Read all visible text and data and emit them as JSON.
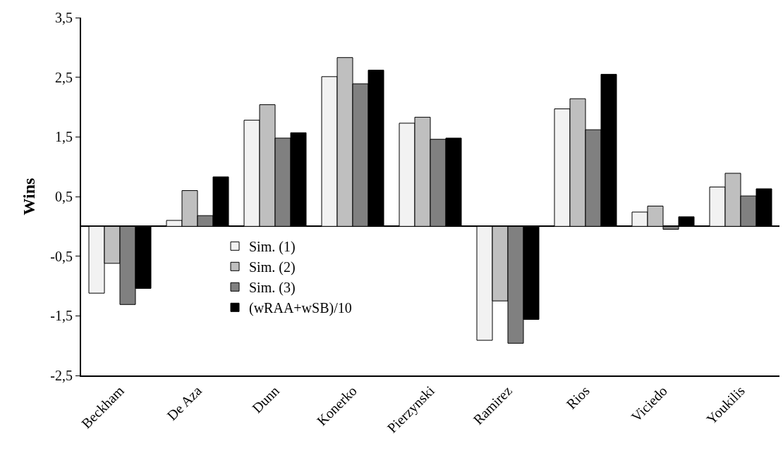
{
  "chart_data": {
    "type": "bar",
    "ylabel": "Wins",
    "categories": [
      "Beckham",
      "De Aza",
      "Dunn",
      "Konerko",
      "Pierzynski",
      "Ramirez",
      "Rios",
      "Viciedo",
      "Youkilis"
    ],
    "series": [
      {
        "name": "Sim. (1)",
        "color": "#f2f2f2",
        "values": [
          -1.12,
          0.1,
          1.78,
          2.51,
          1.73,
          -1.91,
          1.97,
          0.24,
          0.66
        ]
      },
      {
        "name": "Sim. (2)",
        "color": "#bfbfbf",
        "values": [
          -0.62,
          0.6,
          2.04,
          2.83,
          1.83,
          -1.25,
          2.14,
          0.34,
          0.89
        ]
      },
      {
        "name": "Sim. (3)",
        "color": "#808080",
        "values": [
          -1.31,
          0.18,
          1.48,
          2.39,
          1.46,
          -1.96,
          1.62,
          -0.05,
          0.51
        ]
      },
      {
        "name": "(wRAA+wSB)/10",
        "color": "#000000",
        "values": [
          -1.04,
          0.83,
          1.57,
          2.62,
          1.48,
          -1.56,
          2.55,
          0.16,
          0.63
        ]
      }
    ],
    "ylim": [
      -2.5,
      3.5
    ],
    "yticks": [
      {
        "value": -2.5,
        "label": "-2,5"
      },
      {
        "value": -1.5,
        "label": "-1,5"
      },
      {
        "value": -0.5,
        "label": "-0,5"
      },
      {
        "value": 0.5,
        "label": "0,5"
      },
      {
        "value": 1.5,
        "label": "1,5"
      },
      {
        "value": 2.5,
        "label": "2,5"
      },
      {
        "value": 3.5,
        "label": "3,5"
      }
    ],
    "grid": false,
    "legend": "left"
  }
}
